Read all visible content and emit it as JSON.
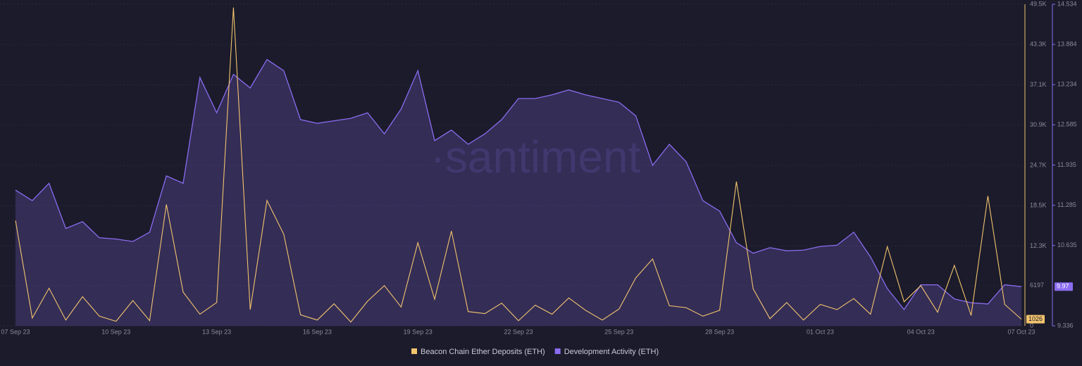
{
  "chart_data": {
    "type": "line",
    "watermark": "·santiment",
    "categories": [
      "07 Sep 23",
      null,
      null,
      null,
      null,
      null,
      "10 Sep 23",
      null,
      null,
      null,
      null,
      null,
      "13 Sep 23",
      null,
      null,
      null,
      null,
      null,
      "16 Sep 23",
      null,
      null,
      null,
      null,
      null,
      "19 Sep 23",
      null,
      null,
      null,
      null,
      null,
      "22 Sep 23",
      null,
      null,
      null,
      null,
      null,
      "25 Sep 23",
      null,
      null,
      null,
      null,
      null,
      "28 Sep 23",
      null,
      null,
      null,
      null,
      null,
      "01 Oct 23",
      null,
      null,
      null,
      null,
      null,
      "04 Oct 23",
      null,
      null,
      null,
      null,
      null,
      "07 Oct 23"
    ],
    "ylim": [
      0,
      49500
    ],
    "yticks": [
      0,
      6197,
      {
        "value": 12300,
        "label": "12.3K"
      },
      {
        "value": 18500,
        "label": "18.5K"
      },
      {
        "value": 24700,
        "label": "24.7K"
      },
      {
        "value": 30900,
        "label": "30.9K"
      },
      {
        "value": 37100,
        "label": "37.1K"
      },
      {
        "value": 43300,
        "label": "43.3K"
      },
      {
        "value": 49500,
        "label": "49.5K"
      }
    ],
    "y2lim": [
      9.336,
      14.534
    ],
    "y2ticks": [
      9.336,
      10.635,
      11.285,
      11.935,
      12.585,
      13.234,
      13.884,
      14.534
    ],
    "grid": true,
    "series": [
      {
        "name": "Beacon Chain Ether Deposits (ETH)",
        "color": "#f2c46d",
        "badge": "1026",
        "values": [
          16200,
          1200,
          5800,
          900,
          4500,
          1500,
          700,
          3900,
          800,
          18700,
          5200,
          1800,
          3600,
          49000,
          2500,
          19300,
          14100,
          1700,
          900,
          3400,
          600,
          3800,
          6200,
          2900,
          12800,
          4100,
          14600,
          2200,
          1900,
          3500,
          800,
          3200,
          1800,
          4300,
          2400,
          900,
          2600,
          7400,
          10300,
          3100,
          2800,
          1500,
          2400,
          22200,
          5700,
          1100,
          3600,
          900,
          3300,
          2500,
          4200,
          1800,
          12200,
          3700,
          6200,
          2100,
          9300,
          1600,
          20000,
          3300,
          1026
        ]
      },
      {
        "name": "Development Activity (ETH)",
        "color": "#8b6cf0",
        "axis": "y2",
        "badge": "9.97",
        "values": [
          11.53,
          11.36,
          11.64,
          10.91,
          11.02,
          10.76,
          10.74,
          10.7,
          10.85,
          11.76,
          11.64,
          13.35,
          12.78,
          13.4,
          13.18,
          13.64,
          13.46,
          12.67,
          12.61,
          12.65,
          12.69,
          12.78,
          12.44,
          12.84,
          13.46,
          12.33,
          12.5,
          12.27,
          12.44,
          12.67,
          13.01,
          13.01,
          13.07,
          13.15,
          13.07,
          13.01,
          12.95,
          12.73,
          11.93,
          12.27,
          11.99,
          11.36,
          11.19,
          10.68,
          10.51,
          10.6,
          10.55,
          10.56,
          10.62,
          10.64,
          10.85,
          10.45,
          9.94,
          9.6,
          10.0,
          10.0,
          9.77,
          9.71,
          9.69,
          10.0,
          9.97
        ]
      }
    ]
  }
}
